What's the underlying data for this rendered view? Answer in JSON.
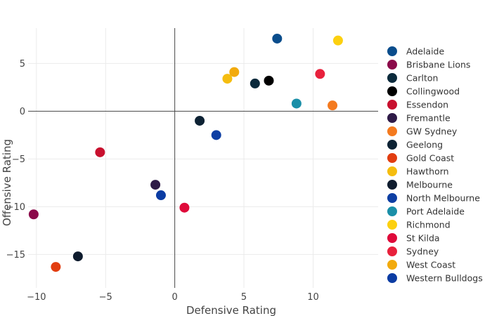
{
  "chart_data": {
    "type": "scatter",
    "title": "",
    "xlabel": "Defensive Rating",
    "ylabel": "Offensive Rating",
    "xlim": [
      -10.6,
      14.7
    ],
    "ylim": [
      -18.5,
      8.7
    ],
    "xticks": [
      -10,
      -5,
      0,
      5,
      10
    ],
    "xtick_labels": [
      "−10",
      "−5",
      "0",
      "5",
      "10"
    ],
    "yticks": [
      -15,
      -10,
      -5,
      0,
      5
    ],
    "ytick_labels": [
      "−15",
      "−10",
      "−5",
      "0",
      "5"
    ],
    "grid": true,
    "legend_position": "right",
    "series": [
      {
        "name": "Adelaide",
        "color": "#0a4d8c",
        "x": 7.4,
        "y": 7.6
      },
      {
        "name": "Brisbane Lions",
        "color": "#8b0a4a",
        "x": -10.2,
        "y": -10.8
      },
      {
        "name": "Carlton",
        "color": "#0b2a3c",
        "x": 5.8,
        "y": 2.9
      },
      {
        "name": "Collingwood",
        "color": "#000000",
        "x": 6.8,
        "y": 3.2
      },
      {
        "name": "Essendon",
        "color": "#c8102e",
        "x": -5.4,
        "y": -4.3
      },
      {
        "name": "Fremantle",
        "color": "#2e1a47",
        "x": -1.4,
        "y": -7.7
      },
      {
        "name": "GW Sydney",
        "color": "#f47a1f",
        "x": 11.4,
        "y": 0.6
      },
      {
        "name": "Geelong",
        "color": "#0d2234",
        "x": 1.8,
        "y": -1.0
      },
      {
        "name": "Gold Coast",
        "color": "#e23d10",
        "x": -8.6,
        "y": -16.3
      },
      {
        "name": "Hawthorn",
        "color": "#f5bd0f",
        "x": 3.8,
        "y": 3.4
      },
      {
        "name": "Melbourne",
        "color": "#0f1c2e",
        "x": -7.0,
        "y": -15.2
      },
      {
        "name": "North Melbourne",
        "color": "#0d3ea3",
        "x": 3.0,
        "y": -2.5
      },
      {
        "name": "Port Adelaide",
        "color": "#1a8fa8",
        "x": 8.8,
        "y": 0.8
      },
      {
        "name": "Richmond",
        "color": "#fcd00f",
        "x": 11.8,
        "y": 7.4
      },
      {
        "name": "St Kilda",
        "color": "#df0a3a",
        "x": 0.7,
        "y": -10.1
      },
      {
        "name": "Sydney",
        "color": "#e8213c",
        "x": 10.5,
        "y": 3.9
      },
      {
        "name": "West Coast",
        "color": "#f2aa0c",
        "x": 4.3,
        "y": 4.1
      },
      {
        "name": "Western Bulldogs",
        "color": "#0b3ca3",
        "x": -1.0,
        "y": -8.8
      }
    ]
  }
}
